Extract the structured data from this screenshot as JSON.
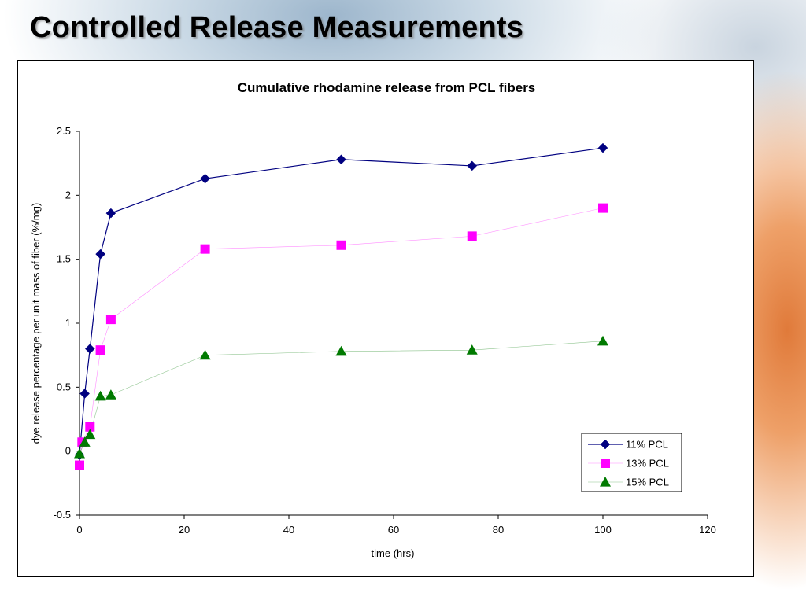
{
  "slide": {
    "title": "Controlled Release Measurements"
  },
  "chart_data": {
    "type": "line",
    "title": "Cumulative rhodamine release from PCL fibers",
    "xlabel": "time (hrs)",
    "ylabel": "dye release percentage per unit mass of fiber (%/mg)",
    "xlim": [
      0,
      120
    ],
    "ylim": [
      -0.5,
      2.5
    ],
    "xticks": [
      0,
      20,
      40,
      60,
      80,
      100,
      120
    ],
    "yticks": [
      -0.5,
      0,
      0.5,
      1,
      1.5,
      2,
      2.5
    ],
    "xtick_labels": [
      "0",
      "20",
      "40",
      "60",
      "80",
      "100",
      "120"
    ],
    "ytick_labels": [
      "-0.5",
      "0",
      "0.5",
      "1",
      "1.5",
      "2",
      "2.5"
    ],
    "grid": false,
    "legend_position": "bottom-right",
    "series": [
      {
        "name": "11% PCL",
        "color": "#000080",
        "marker": "diamond",
        "x": [
          0,
          1,
          2,
          4,
          6,
          24,
          50,
          75,
          100
        ],
        "y": [
          -0.03,
          0.45,
          0.8,
          1.54,
          1.86,
          2.13,
          2.28,
          2.23,
          2.37
        ]
      },
      {
        "name": "13% PCL",
        "color": "#ff00ff",
        "marker": "square",
        "x": [
          0,
          0.5,
          2,
          4,
          6,
          24,
          50,
          75,
          100
        ],
        "y": [
          -0.11,
          0.07,
          0.19,
          0.79,
          1.03,
          1.58,
          1.61,
          1.68,
          1.9
        ]
      },
      {
        "name": "15% PCL",
        "color": "#007a00",
        "marker": "triangle",
        "x": [
          0,
          1,
          2,
          4,
          6,
          24,
          50,
          75,
          100
        ],
        "y": [
          -0.02,
          0.07,
          0.13,
          0.43,
          0.44,
          0.75,
          0.78,
          0.79,
          0.86
        ]
      }
    ]
  }
}
